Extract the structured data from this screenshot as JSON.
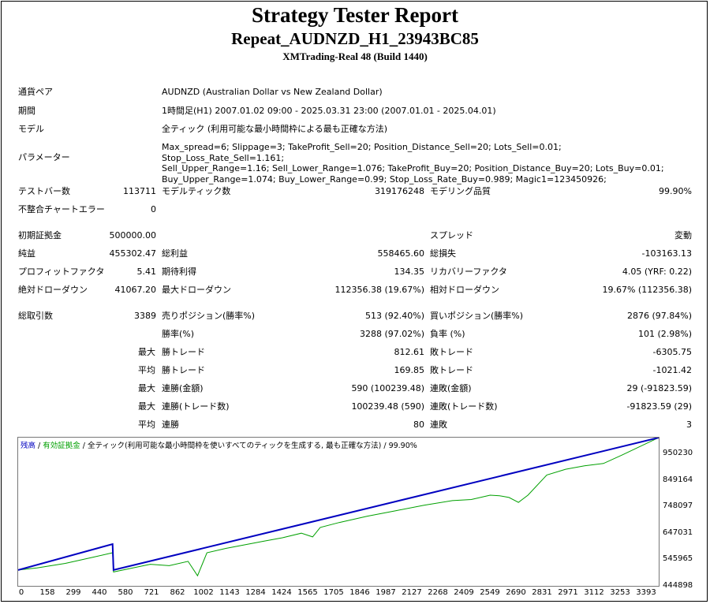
{
  "report": {
    "title": "Strategy Tester Report",
    "expert": "Repeat_AUDNZD_H1_23943BC85",
    "server": "XMTrading-Real 48 (Build 1440)"
  },
  "settings": {
    "symbol_label": "通貨ペア",
    "symbol": "AUDNZD (Australian Dollar vs New Zealand Dollar)",
    "period_label": "期間",
    "period": "1時間足(H1) 2007.01.02 09:00 - 2025.03.31 23:00 (2007.01.01 - 2025.04.01)",
    "model_label": "モデル",
    "model": "全ティック (利用可能な最小時間枠による最も正確な方法)",
    "params_label": "パラメーター",
    "params_line1": "Max_spread=6; Slippage=3; TakeProfit_Sell=20; Position_Distance_Sell=20; Lots_Sell=0.01; Stop_Loss_Rate_Sell=1.161;",
    "params_line2": "Sell_Upper_Range=1.16; Sell_Lower_Range=1.076; TakeProfit_Buy=20; Position_Distance_Buy=20; Lots_Buy=0.01;",
    "params_line3": "Buy_Upper_Range=1.074; Buy_Lower_Range=0.99; Stop_Loss_Rate_Buy=0.989; Magic1=123450926;"
  },
  "stats": {
    "bars_label": "テストバー数",
    "bars": "113711",
    "ticks_label": "モデルティック数",
    "ticks": "319176248",
    "quality_label": "モデリング品質",
    "quality": "99.90%",
    "mismatch_label": "不整合チャートエラー",
    "mismatch": "0",
    "deposit_label": "初期証拠金",
    "deposit": "500000.00",
    "spread_label": "スプレッド",
    "spread": "変動",
    "net_label": "純益",
    "net": "455302.47",
    "gross_profit_label": "総利益",
    "gross_profit": "558465.60",
    "gross_loss_label": "総損失",
    "gross_loss": "-103163.13",
    "pf_label": "プロフィットファクタ",
    "pf": "5.41",
    "expected_label": "期待利得",
    "expected": "134.35",
    "recovery_label": "リカバリーファクタ",
    "recovery": "4.05 (YRF: 0.22)",
    "abs_dd_label": "絶対ドローダウン",
    "abs_dd": "41067.20",
    "max_dd_label": "最大ドローダウン",
    "max_dd": "112356.38 (19.67%)",
    "rel_dd_label": "相対ドローダウン",
    "rel_dd": "19.67% (112356.38)",
    "trades_label": "総取引数",
    "trades": "3389",
    "short_label": "売りポジション(勝率%)",
    "short": "513 (92.40%)",
    "long_label": "買いポジション(勝率%)",
    "long": "2876 (97.84%)",
    "win_pct_label": "勝率(%)",
    "win_pct": "3288 (97.02%)",
    "loss_pct_label": "負率 (%)",
    "loss_pct": "101 (2.98%)",
    "max_word": "最大",
    "avg_word": "平均",
    "largest_win_label": "勝トレード",
    "largest_win": "812.61",
    "largest_loss_label": "敗トレード",
    "largest_loss": "-6305.75",
    "avg_win_label": "勝トレード",
    "avg_win": "169.85",
    "avg_loss_label": "敗トレード",
    "avg_loss": "-1021.42",
    "cons_wins_label": "連勝(金額)",
    "cons_wins": "590 (100239.48)",
    "cons_losses_label": "連敗(金額)",
    "cons_losses": "29 (-91823.59)",
    "cons_profit_label": "連勝(トレード数)",
    "cons_profit": "100239.48 (590)",
    "cons_loss_label": "連敗(トレード数)",
    "cons_loss": "-91823.59 (29)",
    "avg_cons_wins_label": "連勝",
    "avg_cons_wins": "80",
    "avg_cons_losses_label": "連敗",
    "avg_cons_losses": "3"
  },
  "chart_data": {
    "type": "line",
    "legend": {
      "balance": "残高",
      "sep1": " / ",
      "equity": "有効証拠金",
      "sep2": " / ",
      "model": "全ティック(利用可能な最小時間枠を使いすべてのティックを生成する, 最も正確な方法)",
      "sep3": " / ",
      "quality": "99.90%"
    },
    "colors": {
      "balance": "#0000c0",
      "equity": "#00a000"
    },
    "x_ticks": [
      "0",
      "158",
      "299",
      "440",
      "580",
      "721",
      "862",
      "1002",
      "1143",
      "1284",
      "1424",
      "1565",
      "1705",
      "1846",
      "1987",
      "2127",
      "2268",
      "2409",
      "2549",
      "2690",
      "2831",
      "2971",
      "3112",
      "3253",
      "3393"
    ],
    "y_ticks": [
      "950230",
      "849164",
      "748097",
      "647031",
      "545965",
      "444898"
    ],
    "xlim": [
      0,
      3393
    ],
    "ylim": [
      444898,
      960000
    ],
    "series": [
      {
        "name": "残高",
        "x": [
          0,
          500,
          505,
          3393
        ],
        "y": [
          500000,
          590000,
          500000,
          960000
        ]
      },
      {
        "name": "有効証拠金",
        "x": [
          0,
          100,
          250,
          400,
          500,
          505,
          700,
          800,
          900,
          950,
          1000,
          1100,
          1300,
          1400,
          1500,
          1560,
          1600,
          1700,
          1850,
          2000,
          2150,
          2300,
          2400,
          2500,
          2550,
          2600,
          2650,
          2700,
          2800,
          2900,
          3000,
          3100,
          3200,
          3393
        ],
        "y": [
          500000,
          507000,
          523000,
          545000,
          560000,
          493000,
          520000,
          515000,
          530000,
          480000,
          560000,
          575000,
          600000,
          612000,
          628000,
          615000,
          648000,
          665000,
          687000,
          706000,
          725000,
          741000,
          745000,
          760000,
          758000,
          752000,
          735000,
          760000,
          830000,
          850000,
          862000,
          870000,
          900000,
          960000
        ]
      }
    ]
  }
}
